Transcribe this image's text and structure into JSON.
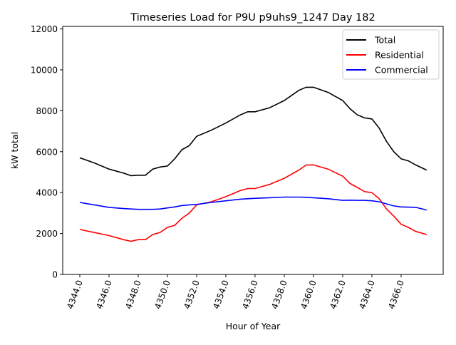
{
  "chart_data": {
    "type": "line",
    "title": "Timeseries Load for P9U p9uhs9_1247  Day 182",
    "xlabel": "Hour of Year",
    "ylabel": "kW total",
    "xlim": [
      4342.83,
      4368.88
    ],
    "ylim": [
      0,
      12125
    ],
    "xticks": [
      4344,
      4346,
      4348,
      4350,
      4352,
      4354,
      4356,
      4358,
      4360,
      4362,
      4364,
      4366
    ],
    "xtick_labels": [
      "4344.0",
      "4346.0",
      "4348.0",
      "4350.0",
      "4352.0",
      "4354.0",
      "4356.0",
      "4358.0",
      "4360.0",
      "4362.0",
      "4364.0",
      "4366.0"
    ],
    "yticks": [
      0,
      2000,
      4000,
      6000,
      8000,
      10000,
      12000
    ],
    "ytick_labels": [
      "0",
      "2000",
      "4000",
      "6000",
      "8000",
      "10000",
      "12000"
    ],
    "grid": false,
    "legend_position": "top-right",
    "x": [
      4344,
      4345,
      4346,
      4347,
      4347.5,
      4348,
      4348.5,
      4349,
      4349.5,
      4350,
      4350.5,
      4351,
      4351.5,
      4352,
      4353,
      4354,
      4355,
      4355.5,
      4356,
      4357,
      4358,
      4359,
      4359.5,
      4360,
      4361,
      4362,
      4362.5,
      4363,
      4363.5,
      4364,
      4364.5,
      4365,
      4365.5,
      4366,
      4366.5,
      4367,
      4367.75
    ],
    "series": [
      {
        "name": "Total",
        "color": "#000000",
        "values": [
          5700,
          5450,
          5150,
          4950,
          4830,
          4850,
          4850,
          5150,
          5250,
          5300,
          5650,
          6100,
          6300,
          6750,
          7050,
          7400,
          7800,
          7950,
          7950,
          8150,
          8500,
          9000,
          9150,
          9150,
          8900,
          8500,
          8100,
          7800,
          7650,
          7600,
          7150,
          6500,
          6000,
          5650,
          5550,
          5350,
          5100
        ]
      },
      {
        "name": "Residential",
        "color": "#ff0000",
        "values": [
          2200,
          2050,
          1900,
          1700,
          1620,
          1700,
          1700,
          1950,
          2050,
          2300,
          2400,
          2750,
          3000,
          3400,
          3550,
          3800,
          4100,
          4200,
          4200,
          4400,
          4700,
          5100,
          5350,
          5350,
          5150,
          4800,
          4450,
          4250,
          4050,
          4000,
          3700,
          3200,
          2850,
          2450,
          2300,
          2100,
          1950
        ]
      },
      {
        "name": "Commercial",
        "color": "#0000ff",
        "values": [
          3520,
          3400,
          3280,
          3220,
          3200,
          3180,
          3180,
          3180,
          3200,
          3250,
          3300,
          3370,
          3400,
          3420,
          3520,
          3600,
          3680,
          3700,
          3720,
          3750,
          3780,
          3780,
          3770,
          3750,
          3700,
          3620,
          3630,
          3620,
          3620,
          3600,
          3550,
          3450,
          3350,
          3300,
          3290,
          3280,
          3150
        ]
      }
    ]
  }
}
